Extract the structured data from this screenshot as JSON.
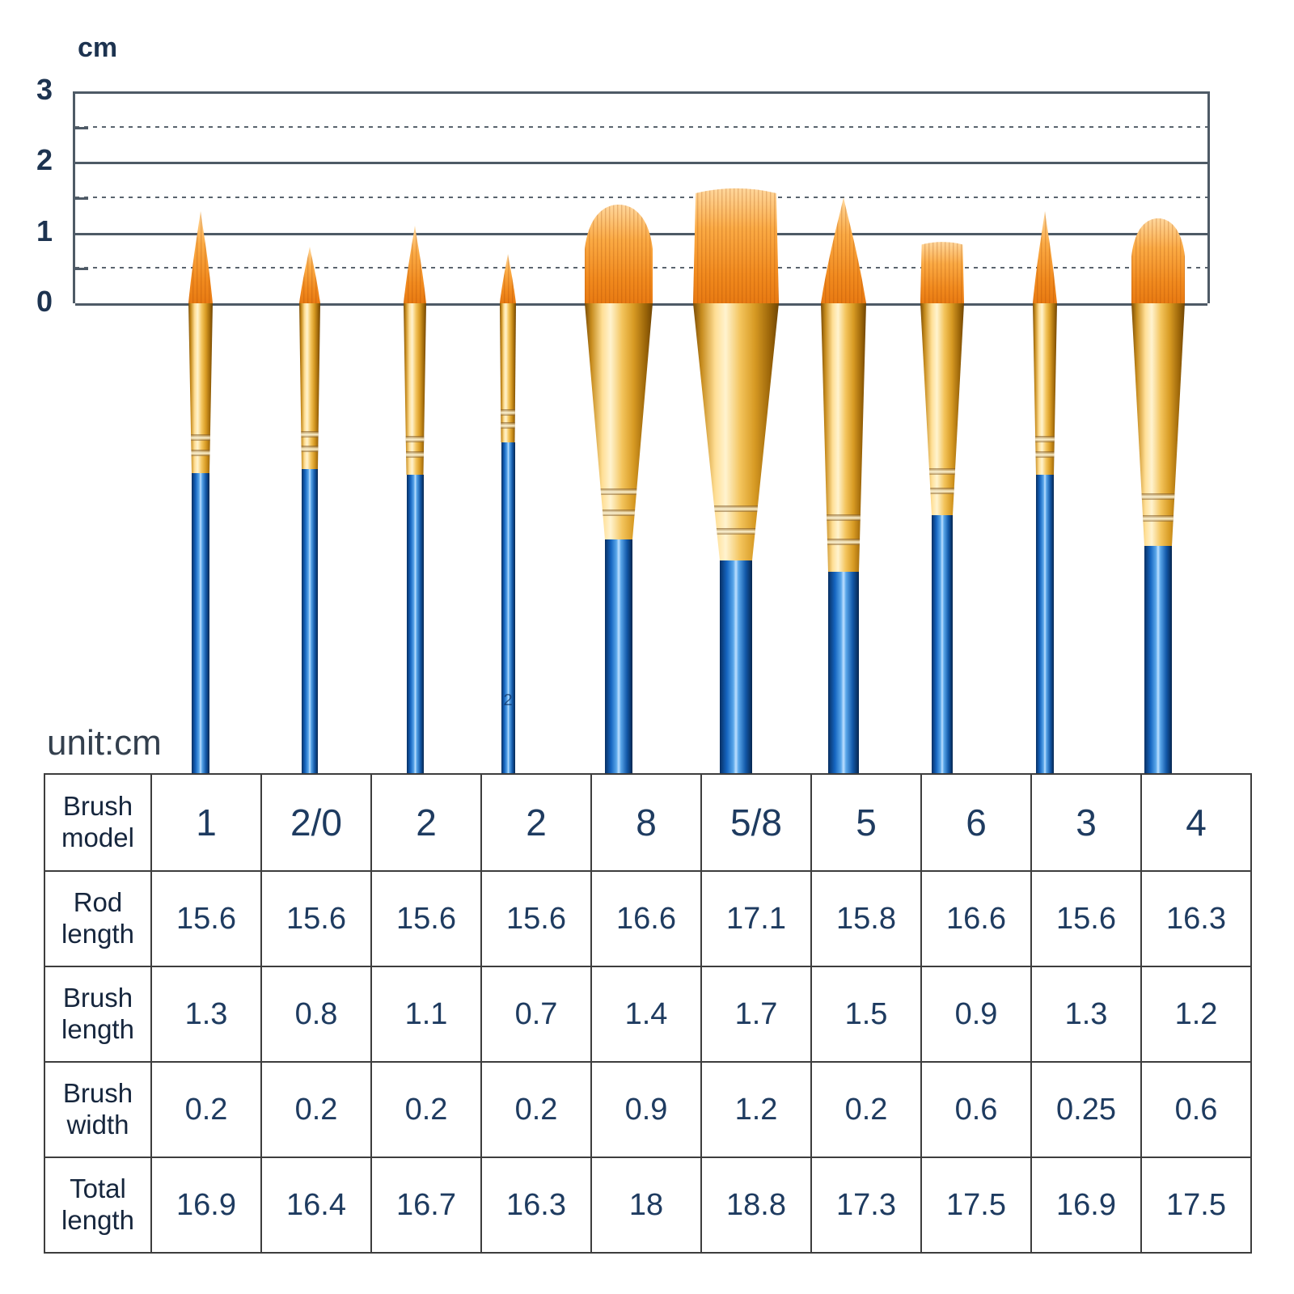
{
  "ruler": {
    "unit_label": "cm",
    "tick_labels": [
      "3",
      "2",
      "1",
      "0"
    ]
  },
  "brushes": [
    {
      "model": "1",
      "type": "round",
      "brush_length_cm": 1.3
    },
    {
      "model": "2/0",
      "type": "round",
      "brush_length_cm": 0.8
    },
    {
      "model": "2",
      "type": "round",
      "brush_length_cm": 1.1
    },
    {
      "model": "2",
      "type": "round",
      "brush_length_cm": 0.7,
      "handle_label": "2"
    },
    {
      "model": "8",
      "type": "filbert",
      "brush_length_cm": 1.4
    },
    {
      "model": "5/8",
      "type": "flat",
      "brush_length_cm": 1.7
    },
    {
      "model": "5",
      "type": "round",
      "brush_length_cm": 1.5
    },
    {
      "model": "6",
      "type": "flat",
      "brush_length_cm": 0.9
    },
    {
      "model": "3",
      "type": "round",
      "brush_length_cm": 1.3
    },
    {
      "model": "4",
      "type": "filbert",
      "brush_length_cm": 1.2
    }
  ],
  "table": {
    "unit_note": "unit:cm",
    "row_headers": [
      "Brush model",
      "Rod length",
      "Brush length",
      "Brush width",
      "Total length"
    ],
    "model_row": [
      "1",
      "2/0",
      "2",
      "2",
      "8",
      "5/8",
      "5",
      "6",
      "3",
      "4"
    ],
    "rows": [
      {
        "header": "Rod length",
        "values": [
          "15.6",
          "15.6",
          "15.6",
          "15.6",
          "16.6",
          "17.1",
          "15.8",
          "16.6",
          "15.6",
          "16.3"
        ]
      },
      {
        "header": "Brush length",
        "values": [
          "1.3",
          "0.8",
          "1.1",
          "0.7",
          "1.4",
          "1.7",
          "1.5",
          "0.9",
          "1.3",
          "1.2"
        ]
      },
      {
        "header": "Brush width",
        "values": [
          "0.2",
          "0.2",
          "0.2",
          "0.2",
          "0.9",
          "1.2",
          "0.2",
          "0.6",
          "0.25",
          "0.6"
        ]
      },
      {
        "header": "Total length",
        "values": [
          "16.9",
          "16.4",
          "16.7",
          "16.3",
          "18",
          "18.8",
          "17.3",
          "17.5",
          "16.9",
          "17.5"
        ]
      }
    ]
  },
  "chart_data": {
    "type": "table",
    "title": "unit:cm",
    "columns": [
      "1",
      "2/0",
      "2",
      "2",
      "8",
      "5/8",
      "5",
      "6",
      "3",
      "4"
    ],
    "series": [
      {
        "name": "Rod length",
        "values": [
          15.6,
          15.6,
          15.6,
          15.6,
          16.6,
          17.1,
          15.8,
          16.6,
          15.6,
          16.3
        ]
      },
      {
        "name": "Brush length",
        "values": [
          1.3,
          0.8,
          1.1,
          0.7,
          1.4,
          1.7,
          1.5,
          0.9,
          1.3,
          1.2
        ]
      },
      {
        "name": "Brush width",
        "values": [
          0.2,
          0.2,
          0.2,
          0.2,
          0.9,
          1.2,
          0.2,
          0.6,
          0.25,
          0.6
        ]
      },
      {
        "name": "Total length",
        "values": [
          16.9,
          16.4,
          16.7,
          16.3,
          18,
          18.8,
          17.3,
          17.5,
          16.9,
          17.5
        ]
      }
    ],
    "ruler": {
      "unit": "cm",
      "range": [
        0,
        3
      ],
      "major_ticks": [
        0,
        1,
        2,
        3
      ],
      "minor_ticks": [
        0.5,
        1.5,
        2.5
      ]
    }
  },
  "colors": {
    "handle_blue": "#1565c0",
    "ferrule_gold": "#e8b33c",
    "bristle_orange": "#f59d2c",
    "grid_line": "#4e5a66",
    "text_navy": "#1e3b60"
  }
}
